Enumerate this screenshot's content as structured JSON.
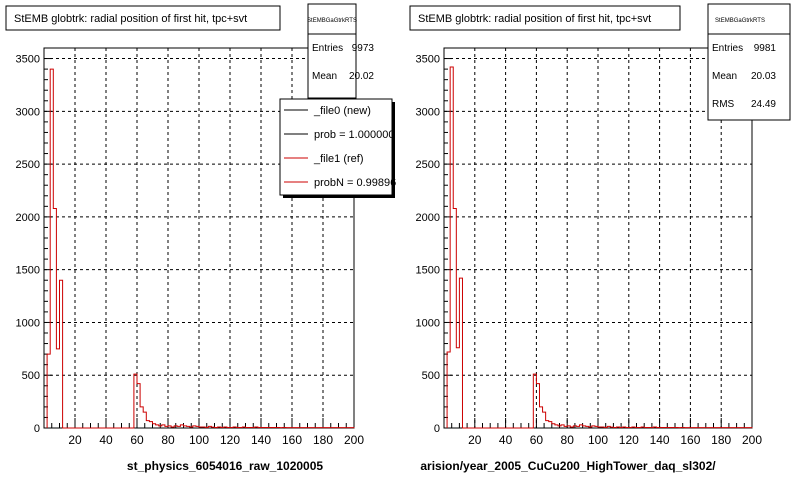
{
  "panels": [
    {
      "title": "StEMB globtrk: radial position of first hit, tpc+svt",
      "footer": "st_physics_6054016_raw_1020005",
      "stats": {
        "name": "StEMBGaGtrkRTS",
        "rows": [
          [
            "Entries",
            "9973"
          ],
          [
            "Mean",
            "20.02"
          ]
        ]
      },
      "legend": [
        {
          "label": "_file0 (new)",
          "color": "#000000"
        },
        {
          "label": "prob = 1.000000",
          "color": "#000000"
        },
        {
          "label": "_file1 (ref)",
          "color": "#cc0000"
        },
        {
          "label": "probN = 0.99896",
          "color": "#cc0000"
        }
      ]
    },
    {
      "title": "StEMB globtrk: radial position of first hit, tpc+svt",
      "footer": "arision/year_2005_CuCu200_HighTower_daq_sl302/",
      "stats": {
        "name": "StEMBGaGtrkRTS",
        "rows": [
          [
            "Entries",
            "9981"
          ],
          [
            "Mean",
            "20.03"
          ],
          [
            "RMS",
            "24.49"
          ]
        ]
      },
      "legend": []
    }
  ],
  "chart_data": [
    {
      "type": "histogram",
      "title": "StEMB globtrk: radial position of first hit, tpc+svt",
      "xlim": [
        0,
        200
      ],
      "ylim": [
        0,
        3600
      ],
      "xticks": [
        20,
        40,
        60,
        80,
        100,
        120,
        140,
        160,
        180,
        200
      ],
      "yticks": [
        0,
        500,
        1000,
        1500,
        2000,
        2500,
        3000,
        3500
      ],
      "grid": true,
      "series": [
        {
          "name": "_file0 (new)",
          "color": "#000000"
        },
        {
          "name": "_file1 (ref)",
          "color": "#cc0000"
        }
      ],
      "bin_width": 2,
      "bins": [
        [
          2,
          700
        ],
        [
          4,
          3400
        ],
        [
          6,
          2080
        ],
        [
          8,
          750
        ],
        [
          10,
          1400
        ],
        [
          12,
          0
        ],
        [
          14,
          0
        ],
        [
          16,
          0
        ],
        [
          18,
          0
        ],
        [
          20,
          0
        ],
        [
          22,
          0
        ],
        [
          24,
          0
        ],
        [
          26,
          0
        ],
        [
          28,
          0
        ],
        [
          30,
          0
        ],
        [
          32,
          0
        ],
        [
          34,
          0
        ],
        [
          36,
          0
        ],
        [
          38,
          0
        ],
        [
          40,
          0
        ],
        [
          42,
          0
        ],
        [
          44,
          0
        ],
        [
          46,
          0
        ],
        [
          48,
          0
        ],
        [
          50,
          0
        ],
        [
          52,
          0
        ],
        [
          54,
          0
        ],
        [
          56,
          0
        ],
        [
          58,
          510
        ],
        [
          60,
          420
        ],
        [
          62,
          200
        ],
        [
          64,
          150
        ],
        [
          66,
          70
        ],
        [
          68,
          60
        ],
        [
          70,
          40
        ],
        [
          72,
          30
        ],
        [
          74,
          20
        ],
        [
          76,
          30
        ],
        [
          78,
          15
        ],
        [
          80,
          20
        ],
        [
          82,
          10
        ],
        [
          84,
          20
        ],
        [
          86,
          15
        ],
        [
          88,
          30
        ],
        [
          90,
          20
        ],
        [
          92,
          15
        ],
        [
          94,
          10
        ],
        [
          96,
          20
        ],
        [
          98,
          15
        ],
        [
          100,
          10
        ],
        [
          102,
          10
        ],
        [
          104,
          5
        ],
        [
          106,
          15
        ],
        [
          108,
          8
        ],
        [
          110,
          5
        ],
        [
          112,
          10
        ],
        [
          114,
          5
        ],
        [
          116,
          10
        ],
        [
          118,
          5
        ],
        [
          120,
          5
        ],
        [
          122,
          10
        ],
        [
          124,
          5
        ],
        [
          126,
          5
        ],
        [
          128,
          10
        ],
        [
          130,
          5
        ],
        [
          132,
          5
        ],
        [
          134,
          5
        ],
        [
          136,
          10
        ],
        [
          138,
          5
        ],
        [
          140,
          5
        ],
        [
          142,
          5
        ],
        [
          144,
          5
        ],
        [
          146,
          5
        ],
        [
          148,
          5
        ],
        [
          150,
          5
        ],
        [
          152,
          3
        ],
        [
          154,
          5
        ],
        [
          156,
          3
        ],
        [
          158,
          3
        ],
        [
          160,
          3
        ],
        [
          162,
          3
        ],
        [
          164,
          3
        ],
        [
          166,
          3
        ],
        [
          168,
          3
        ],
        [
          170,
          3
        ],
        [
          172,
          3
        ],
        [
          174,
          3
        ],
        [
          176,
          3
        ],
        [
          178,
          3
        ],
        [
          180,
          3
        ],
        [
          182,
          3
        ],
        [
          184,
          3
        ],
        [
          186,
          3
        ],
        [
          188,
          3
        ],
        [
          190,
          3
        ],
        [
          192,
          3
        ],
        [
          194,
          3
        ],
        [
          196,
          3
        ],
        [
          198,
          3
        ]
      ]
    },
    {
      "type": "histogram",
      "title": "StEMB globtrk: radial position of first hit, tpc+svt",
      "xlim": [
        0,
        200
      ],
      "ylim": [
        0,
        3600
      ],
      "xticks": [
        20,
        40,
        60,
        80,
        100,
        120,
        140,
        160,
        180,
        200
      ],
      "yticks": [
        0,
        500,
        1000,
        1500,
        2000,
        2500,
        3000,
        3500
      ],
      "grid": true,
      "series": [
        {
          "name": "",
          "color": "#cc0000"
        }
      ],
      "bin_width": 2,
      "bins": [
        [
          2,
          720
        ],
        [
          4,
          3420
        ],
        [
          6,
          2080
        ],
        [
          8,
          760
        ],
        [
          10,
          1420
        ],
        [
          12,
          0
        ],
        [
          14,
          0
        ],
        [
          16,
          0
        ],
        [
          18,
          0
        ],
        [
          20,
          0
        ],
        [
          22,
          0
        ],
        [
          24,
          0
        ],
        [
          26,
          0
        ],
        [
          28,
          0
        ],
        [
          30,
          0
        ],
        [
          32,
          0
        ],
        [
          34,
          0
        ],
        [
          36,
          0
        ],
        [
          38,
          0
        ],
        [
          40,
          0
        ],
        [
          42,
          0
        ],
        [
          44,
          0
        ],
        [
          46,
          0
        ],
        [
          48,
          0
        ],
        [
          50,
          0
        ],
        [
          52,
          0
        ],
        [
          54,
          0
        ],
        [
          56,
          0
        ],
        [
          58,
          510
        ],
        [
          60,
          420
        ],
        [
          62,
          200
        ],
        [
          64,
          150
        ],
        [
          66,
          70
        ],
        [
          68,
          60
        ],
        [
          70,
          40
        ],
        [
          72,
          30
        ],
        [
          74,
          20
        ],
        [
          76,
          30
        ],
        [
          78,
          15
        ],
        [
          80,
          20
        ],
        [
          82,
          10
        ],
        [
          84,
          20
        ],
        [
          86,
          15
        ],
        [
          88,
          30
        ],
        [
          90,
          20
        ],
        [
          92,
          15
        ],
        [
          94,
          10
        ],
        [
          96,
          20
        ],
        [
          98,
          15
        ],
        [
          100,
          10
        ],
        [
          102,
          10
        ],
        [
          104,
          5
        ],
        [
          106,
          15
        ],
        [
          108,
          8
        ],
        [
          110,
          5
        ],
        [
          112,
          10
        ],
        [
          114,
          5
        ],
        [
          116,
          10
        ],
        [
          118,
          5
        ],
        [
          120,
          5
        ],
        [
          122,
          10
        ],
        [
          124,
          5
        ],
        [
          126,
          5
        ],
        [
          128,
          10
        ],
        [
          130,
          5
        ],
        [
          132,
          5
        ],
        [
          134,
          5
        ],
        [
          136,
          10
        ],
        [
          138,
          5
        ],
        [
          140,
          5
        ],
        [
          142,
          5
        ],
        [
          144,
          5
        ],
        [
          146,
          5
        ],
        [
          148,
          5
        ],
        [
          150,
          5
        ],
        [
          152,
          3
        ],
        [
          154,
          5
        ],
        [
          156,
          3
        ],
        [
          158,
          3
        ],
        [
          160,
          3
        ],
        [
          162,
          3
        ],
        [
          164,
          3
        ],
        [
          166,
          3
        ],
        [
          168,
          3
        ],
        [
          170,
          3
        ],
        [
          172,
          3
        ],
        [
          174,
          3
        ],
        [
          176,
          3
        ],
        [
          178,
          3
        ],
        [
          180,
          3
        ],
        [
          182,
          3
        ],
        [
          184,
          3
        ],
        [
          186,
          3
        ],
        [
          188,
          3
        ],
        [
          190,
          3
        ],
        [
          192,
          3
        ],
        [
          194,
          3
        ],
        [
          196,
          3
        ],
        [
          198,
          3
        ]
      ]
    }
  ]
}
